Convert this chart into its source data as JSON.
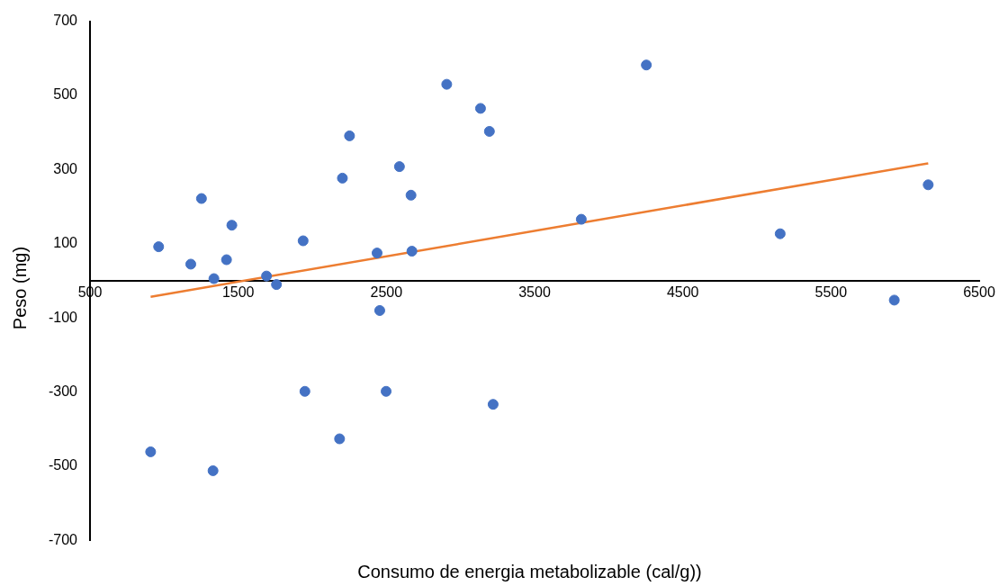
{
  "chart_data": {
    "type": "scatter",
    "xlabel": "Consumo de energia metabolizable (cal/g))",
    "ylabel": "Peso (mg)",
    "xlim": [
      500,
      6500
    ],
    "xticks": [
      500,
      1500,
      2500,
      3500,
      4500,
      5500,
      6500
    ],
    "ylim": [
      -700,
      700
    ],
    "yticks": [
      -700,
      -500,
      -300,
      -100,
      100,
      300,
      500,
      700
    ],
    "grid": false,
    "legend": false,
    "series": [
      {
        "marker": "circle",
        "color": "#4472c4",
        "x": [
          963,
          1180,
          1252,
          1336,
          1421,
          1457,
          1691,
          1758,
          1938,
          2203,
          2251,
          2437,
          2455,
          2588,
          2666,
          2672,
          2907,
          3135,
          3195,
          3815,
          4254,
          5157,
          5927,
          6156,
          909,
          1330,
          1950,
          2184,
          2498,
          3220
        ],
        "values": [
          92,
          45,
          222,
          6,
          57,
          150,
          13,
          -10,
          108,
          277,
          391,
          75,
          -80,
          308,
          231,
          80,
          530,
          465,
          403,
          166,
          582,
          127,
          -52,
          259,
          -461,
          -512,
          -298,
          -426,
          -298,
          -333
        ]
      },
      {
        "type": "line",
        "marker": "none",
        "color": "#ed7d31",
        "x": [
          909,
          6156
        ],
        "values": [
          -43,
          317
        ]
      }
    ]
  }
}
